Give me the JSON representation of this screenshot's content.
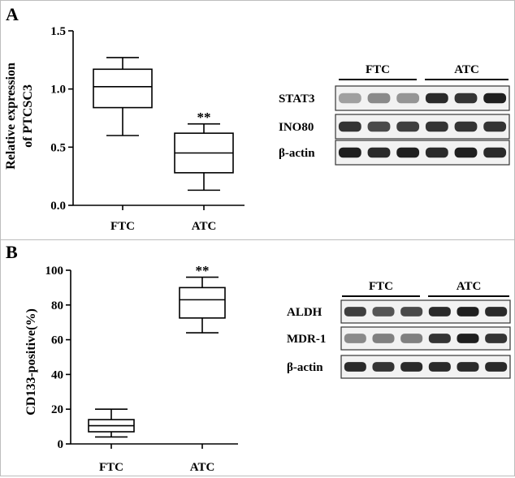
{
  "chart_data": [
    {
      "type": "box",
      "panel_label": "A",
      "ylabel_line1": "Relative expression",
      "ylabel_line2": "of PTCSC3",
      "ylim": [
        0,
        1.5
      ],
      "yticks": [
        "0.0",
        "0.5",
        "1.0",
        "1.5"
      ],
      "ytick_values": [
        0,
        0.5,
        1.0,
        1.5
      ],
      "categories": [
        "FTC",
        "ATC"
      ],
      "boxes": [
        {
          "category": "FTC",
          "min": 0.6,
          "q1": 0.84,
          "median": 1.02,
          "q3": 1.17,
          "max": 1.27
        },
        {
          "category": "ATC",
          "min": 0.13,
          "q1": 0.28,
          "median": 0.45,
          "q3": 0.62,
          "max": 0.7
        }
      ],
      "annotations": [
        {
          "category": "ATC",
          "text": "**",
          "y": 0.76
        }
      ],
      "grid": false
    },
    {
      "type": "box",
      "panel_label": "B",
      "ylabel_line1": "CD133-positive(%)",
      "ylim": [
        0,
        100
      ],
      "yticks": [
        "0",
        "20",
        "40",
        "60",
        "80",
        "100"
      ],
      "ytick_values": [
        0,
        20,
        40,
        60,
        80,
        100
      ],
      "categories": [
        "FTC",
        "ATC"
      ],
      "boxes": [
        {
          "category": "FTC",
          "min": 4,
          "q1": 7,
          "median": 10.5,
          "q3": 14,
          "max": 20
        },
        {
          "category": "ATC",
          "min": 64,
          "q1": 72.5,
          "median": 83,
          "q3": 90,
          "max": 96
        }
      ],
      "annotations": [
        {
          "category": "ATC",
          "text": "**",
          "y": 100
        }
      ],
      "grid": false
    }
  ],
  "blots": [
    {
      "groups": [
        "FTC",
        "ATC"
      ],
      "rows": [
        {
          "label": "STAT3",
          "intensity": [
            0.35,
            0.45,
            0.4,
            0.9,
            0.85,
            0.95
          ]
        },
        {
          "label": "INO80",
          "intensity": [
            0.85,
            0.75,
            0.8,
            0.85,
            0.85,
            0.85
          ]
        },
        {
          "label": "β-actin",
          "intensity": [
            0.95,
            0.9,
            0.95,
            0.9,
            0.95,
            0.9
          ]
        }
      ]
    },
    {
      "groups": [
        "FTC",
        "ATC"
      ],
      "rows": [
        {
          "label": "ALDH",
          "intensity": [
            0.8,
            0.7,
            0.75,
            0.9,
            0.95,
            0.9
          ]
        },
        {
          "label": "MDR-1",
          "intensity": [
            0.45,
            0.5,
            0.5,
            0.85,
            0.95,
            0.85
          ]
        },
        {
          "label": "β-actin",
          "intensity": [
            0.9,
            0.85,
            0.9,
            0.9,
            0.9,
            0.9
          ]
        }
      ]
    }
  ]
}
